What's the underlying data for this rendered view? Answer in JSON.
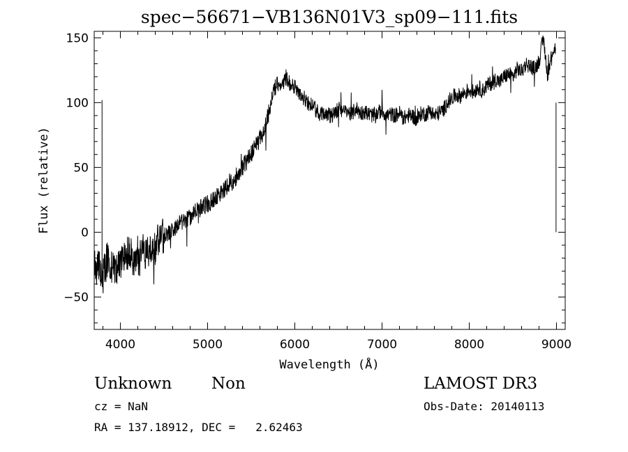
{
  "chart_data": {
    "type": "line",
    "title": "spec−56671−VB136N01V3_sp09−111.fits",
    "xlabel": "Wavelength (Å)",
    "ylabel": "Flux (relative)",
    "xlim": [
      3700,
      9100
    ],
    "ylim": [
      -75,
      155
    ],
    "xticks": [
      4000,
      5000,
      6000,
      7000,
      8000,
      9000
    ],
    "xtick_labels": [
      "4000",
      "5000",
      "6000",
      "7000",
      "8000",
      "9000"
    ],
    "yticks": [
      -50,
      0,
      50,
      100,
      150
    ],
    "ytick_labels": [
      "−50",
      "0",
      "50",
      "100",
      "150"
    ],
    "grid": false,
    "series": [
      {
        "x": [
          3700,
          3780,
          3800,
          3850,
          3900,
          3950,
          4000,
          4050,
          4100,
          4150,
          4200,
          4250,
          4300,
          4350,
          4400,
          4450,
          4500,
          4550,
          4600,
          4650,
          4700,
          4750,
          4800,
          4850,
          4900,
          4950,
          5000,
          5050,
          5100,
          5150,
          5200,
          5250,
          5300,
          5350,
          5400,
          5450,
          5500,
          5550,
          5600,
          5650,
          5700,
          5750,
          5800,
          5850,
          5900,
          5950,
          6000,
          6050,
          6100,
          6150,
          6200,
          6250,
          6300,
          6350,
          6400,
          6450,
          6500,
          6550,
          6600,
          6650,
          6700,
          6750,
          6800,
          6850,
          6900,
          6950,
          7000,
          7050,
          7100,
          7150,
          7200,
          7250,
          7300,
          7350,
          7400,
          7450,
          7500,
          7550,
          7600,
          7650,
          7700,
          7750,
          7800,
          7850,
          7900,
          7950,
          8000,
          8050,
          8100,
          8150,
          8200,
          8250,
          8300,
          8350,
          8400,
          8450,
          8500,
          8550,
          8600,
          8650,
          8700,
          8750,
          8800,
          8850,
          8900,
          8950,
          8990
        ],
        "values": [
          -25,
          -30,
          -35,
          -20,
          -25,
          -30,
          -25,
          -20,
          -15,
          -20,
          -25,
          -15,
          -15,
          -10,
          -12,
          -5,
          -2,
          0,
          2,
          5,
          7,
          10,
          12,
          15,
          18,
          20,
          22,
          24,
          28,
          30,
          33,
          36,
          40,
          45,
          50,
          55,
          60,
          66,
          72,
          80,
          92,
          110,
          115,
          112,
          120,
          114,
          112,
          108,
          104,
          100,
          97,
          94,
          92,
          93,
          90,
          92,
          95,
          92,
          94,
          90,
          96,
          92,
          93,
          91,
          90,
          92,
          94,
          90,
          91,
          90,
          92,
          88,
          90,
          90,
          86,
          92,
          91,
          94,
          90,
          92,
          94,
          100,
          103,
          106,
          105,
          108,
          110,
          108,
          112,
          109,
          113,
          115,
          118,
          116,
          120,
          122,
          120,
          126,
          124,
          130,
          128,
          126,
          132,
          150,
          120,
          140,
          142
        ]
      }
    ]
  },
  "info": {
    "object_class": "Unknown",
    "subclass": "Non",
    "survey": "LAMOST DR3",
    "cz": "cz = NaN",
    "obs_date": "Obs-Date: 20140113",
    "coords": "RA = 137.18912, DEC =   2.62463"
  }
}
